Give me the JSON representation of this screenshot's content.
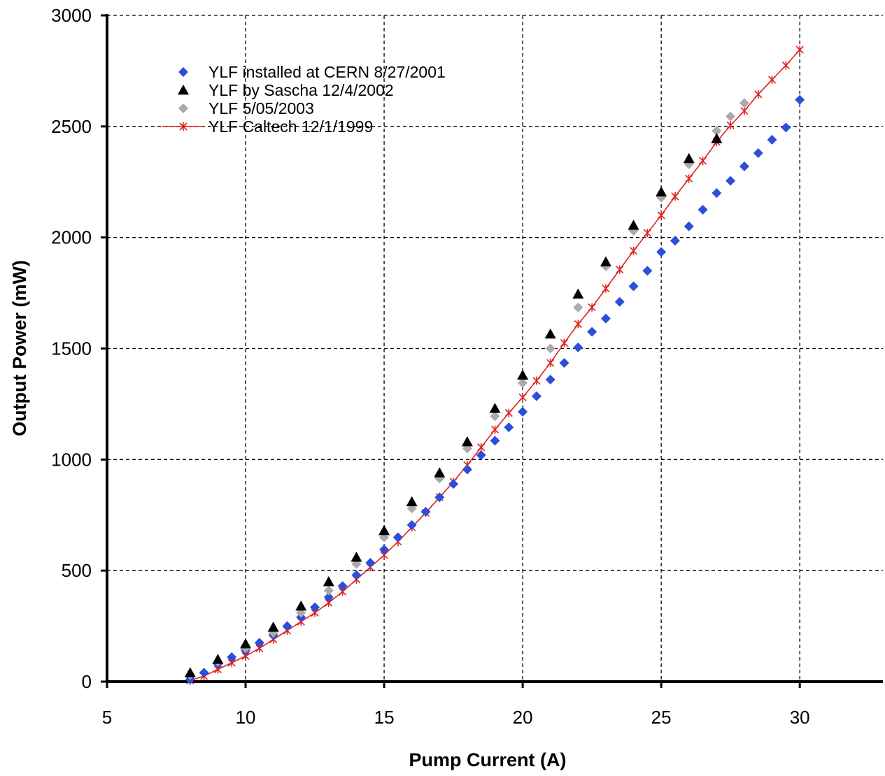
{
  "chart_data": {
    "type": "scatter",
    "xlabel": "Pump Current (A)",
    "ylabel": "Output Power (mW)",
    "xlim": [
      5,
      33
    ],
    "ylim": [
      0,
      3000
    ],
    "xticks": [
      5,
      10,
      15,
      20,
      25,
      30
    ],
    "yticks": [
      0,
      500,
      1000,
      1500,
      2000,
      2500,
      3000
    ],
    "grid": true,
    "legend_position": "top-left",
    "series": [
      {
        "name": "YLF installed at CERN 8/27/2001",
        "marker": "diamond",
        "color": "#2b4fd8",
        "x": [
          8,
          8.5,
          9,
          9.5,
          10,
          10.5,
          11,
          11.5,
          12,
          12.5,
          13,
          13.5,
          14,
          14.5,
          15,
          15.5,
          16,
          16.5,
          17,
          17.5,
          18,
          18.5,
          19,
          19.5,
          20,
          20.5,
          21,
          21.5,
          22,
          22.5,
          23,
          23.5,
          24,
          24.5,
          25,
          25.5,
          26,
          26.5,
          27,
          27.5,
          28,
          28.5,
          29,
          29.5,
          30
        ],
        "y": [
          10,
          40,
          80,
          110,
          140,
          175,
          210,
          250,
          290,
          335,
          380,
          430,
          480,
          535,
          595,
          650,
          705,
          765,
          830,
          890,
          955,
          1020,
          1085,
          1145,
          1215,
          1285,
          1360,
          1435,
          1505,
          1575,
          1635,
          1710,
          1780,
          1850,
          1935,
          1985,
          2050,
          2125,
          2200,
          2255,
          2320,
          2380,
          2440,
          2495,
          2620
        ]
      },
      {
        "name": "YLF by Sascha 12/4/2002",
        "marker": "triangle",
        "color": "#000000",
        "x": [
          8,
          9,
          10,
          11,
          12,
          13,
          14,
          15,
          16,
          17,
          18,
          19,
          20,
          21,
          22,
          23,
          24,
          25,
          26,
          27
        ],
        "y": [
          40,
          100,
          170,
          245,
          340,
          450,
          560,
          680,
          810,
          940,
          1080,
          1230,
          1380,
          1565,
          1745,
          1890,
          2055,
          2205,
          2355,
          2445
        ]
      },
      {
        "name": "YLF 5/05/2003",
        "marker": "diamond",
        "color": "#aaaaaa",
        "x": [
          8,
          9,
          10,
          11,
          12,
          13,
          14,
          15,
          16,
          17,
          18,
          19,
          20,
          21,
          22,
          23,
          24,
          25,
          26,
          27,
          27.5,
          28
        ],
        "y": [
          30,
          90,
          150,
          220,
          310,
          410,
          530,
          650,
          780,
          915,
          1050,
          1195,
          1345,
          1500,
          1685,
          1870,
          2030,
          2180,
          2330,
          2480,
          2545,
          2605
        ]
      },
      {
        "name": "YLF Caltech 12/1/1999",
        "marker": "star-line",
        "color": "#e02020",
        "x": [
          8,
          8.5,
          9,
          9.5,
          10,
          10.5,
          11,
          11.5,
          12,
          12.5,
          13,
          13.5,
          14,
          14.5,
          15,
          15.5,
          16,
          16.5,
          17,
          17.5,
          18,
          18.5,
          19,
          19.5,
          20,
          20.5,
          21,
          21.5,
          22,
          22.5,
          23,
          23.5,
          24,
          24.5,
          25,
          25.5,
          26,
          26.5,
          27,
          27.5,
          28,
          28.5,
          29,
          29.5,
          30
        ],
        "y": [
          5,
          25,
          55,
          85,
          115,
          150,
          190,
          230,
          270,
          310,
          355,
          405,
          460,
          515,
          570,
          630,
          695,
          760,
          830,
          900,
          975,
          1055,
          1135,
          1210,
          1280,
          1355,
          1435,
          1525,
          1610,
          1685,
          1770,
          1855,
          1940,
          2020,
          2100,
          2185,
          2265,
          2345,
          2430,
          2505,
          2570,
          2645,
          2710,
          2775,
          2845
        ]
      }
    ]
  }
}
